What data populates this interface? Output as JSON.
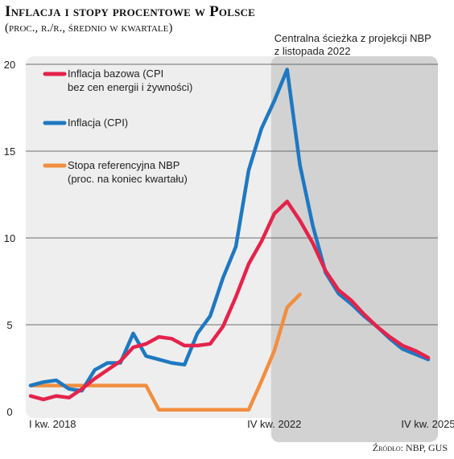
{
  "header": {
    "title": "Inflacja i stopy procentowe w Polsce",
    "subtitle": "(proc., r./r., średnio w kwartale)"
  },
  "source": "Źródło: NBP, GUS",
  "projection_label_line1": "Centralna ścieżka z projekcji NBP",
  "projection_label_line2": "z listopada 2022",
  "colors": {
    "core": "#e4234b",
    "cpi": "#1f78c1",
    "rate": "#f28e40",
    "panel": "#eeeeee",
    "projection_panel": "#d2d2d2"
  },
  "chart_data": {
    "type": "line",
    "title": "Inflacja i stopy procentowe w Polsce",
    "subtitle": "(proc., r./r., średnio w kwartale)",
    "ylim": [
      0,
      20
    ],
    "yticks": [
      0,
      5,
      10,
      15,
      20
    ],
    "x_labels": [
      {
        "index": 0,
        "label": "I kw. 2018"
      },
      {
        "index": 19,
        "label": "IV kw. 2022"
      },
      {
        "index": 31,
        "label": "IV kw. 2025"
      }
    ],
    "x_count": 32,
    "projection_start_index": 19,
    "grid": true,
    "legend_placement": "top-left",
    "series": [
      {
        "key": "core",
        "name": "Inflacja bazowa (CPI",
        "name_line2": "bez cen energii i żywności)",
        "values": [
          0.9,
          0.7,
          0.9,
          0.8,
          1.3,
          1.9,
          2.4,
          2.9,
          3.7,
          3.9,
          4.3,
          4.2,
          3.8,
          3.8,
          3.9,
          4.9,
          6.6,
          8.5,
          9.8,
          11.4,
          12.1,
          11.0,
          9.7,
          8.1,
          7.0,
          6.4,
          5.6,
          4.9,
          4.3,
          3.8,
          3.5,
          3.1
        ]
      },
      {
        "key": "cpi",
        "name": "Inflacja (CPI)",
        "values": [
          1.5,
          1.7,
          1.8,
          1.3,
          1.2,
          2.4,
          2.8,
          2.8,
          4.5,
          3.2,
          3.0,
          2.8,
          2.7,
          4.5,
          5.5,
          7.7,
          9.5,
          13.9,
          16.3,
          17.9,
          19.7,
          14.2,
          10.7,
          8.0,
          6.8,
          6.2,
          5.5,
          4.9,
          4.2,
          3.6,
          3.3,
          3.0
        ]
      },
      {
        "key": "rate",
        "name": "Stopa referencyjna NBP",
        "name_line2": "(proc. na koniec kwartału)",
        "values": [
          1.5,
          1.5,
          1.5,
          1.5,
          1.5,
          1.5,
          1.5,
          1.5,
          1.5,
          1.5,
          0.1,
          0.1,
          0.1,
          0.1,
          0.1,
          0.1,
          0.1,
          0.1,
          1.75,
          3.5,
          6.0,
          6.75
        ]
      }
    ]
  }
}
